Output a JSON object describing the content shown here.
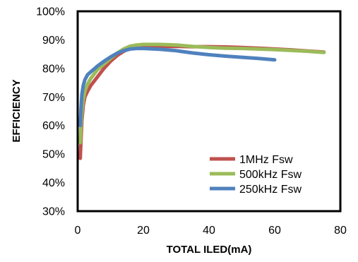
{
  "chart_data": {
    "type": "line",
    "title": "",
    "xlabel": "TOTAL ILED(mA)",
    "ylabel": "EFFICIENCY",
    "xlim": [
      0,
      80
    ],
    "ylim": [
      30,
      100
    ],
    "x_ticks": [
      0,
      20,
      40,
      60,
      80
    ],
    "x_tick_labels": [
      "0",
      "20",
      "40",
      "60",
      "80"
    ],
    "y_ticks": [
      30,
      40,
      50,
      60,
      70,
      80,
      90,
      100
    ],
    "y_tick_labels": [
      "30%",
      "40%",
      "50%",
      "60%",
      "70%",
      "80%",
      "90%",
      "100%"
    ],
    "grid": false,
    "legend_position": "bottom-right",
    "series": [
      {
        "name": "1MHz Fsw",
        "color": "#c0504d",
        "x": [
          0.8,
          1.0,
          1.3,
          1.7,
          2.2,
          3,
          4,
          5,
          6,
          8,
          10,
          12,
          14,
          16,
          18,
          20,
          25,
          30,
          35,
          40,
          45,
          50,
          55,
          60,
          65,
          70,
          75
        ],
        "y": [
          48.5,
          55,
          62,
          67,
          70,
          72,
          74,
          75.5,
          77,
          80,
          82.5,
          84.5,
          86,
          87,
          87.5,
          87.6,
          87.7,
          87.7,
          87.6,
          87.6,
          87.5,
          87.3,
          87.1,
          86.8,
          86.5,
          86.1,
          85.7
        ]
      },
      {
        "name": "500kHz Fsw",
        "color": "#9bbb59",
        "x": [
          0.8,
          1.0,
          1.3,
          1.7,
          2.2,
          3,
          4,
          5,
          6,
          8,
          10,
          12,
          14,
          16,
          18,
          20,
          25,
          30,
          35,
          40,
          45,
          50,
          55,
          60,
          65,
          70,
          75
        ],
        "y": [
          54,
          60,
          65,
          69,
          72,
          74.5,
          76.5,
          78,
          79.5,
          81.5,
          83.5,
          85.3,
          86.8,
          87.8,
          88.2,
          88.4,
          88.4,
          88.2,
          87.7,
          87.3,
          87.1,
          87,
          86.8,
          86.6,
          86.3,
          86,
          85.6
        ]
      },
      {
        "name": "250kHz Fsw",
        "color": "#4f81bd",
        "x": [
          0.8,
          1.0,
          1.3,
          1.7,
          2.2,
          3,
          4,
          5,
          6,
          8,
          10,
          12,
          14,
          16,
          18,
          20,
          25,
          30,
          35,
          40,
          45,
          50,
          55,
          60
        ],
        "y": [
          60,
          66,
          71,
          74,
          76,
          77.8,
          78.8,
          79.8,
          80.8,
          82.5,
          84,
          85.3,
          86.2,
          86.8,
          87,
          87,
          86.7,
          86.2,
          85.4,
          84.8,
          84.3,
          83.9,
          83.5,
          83
        ]
      }
    ]
  }
}
